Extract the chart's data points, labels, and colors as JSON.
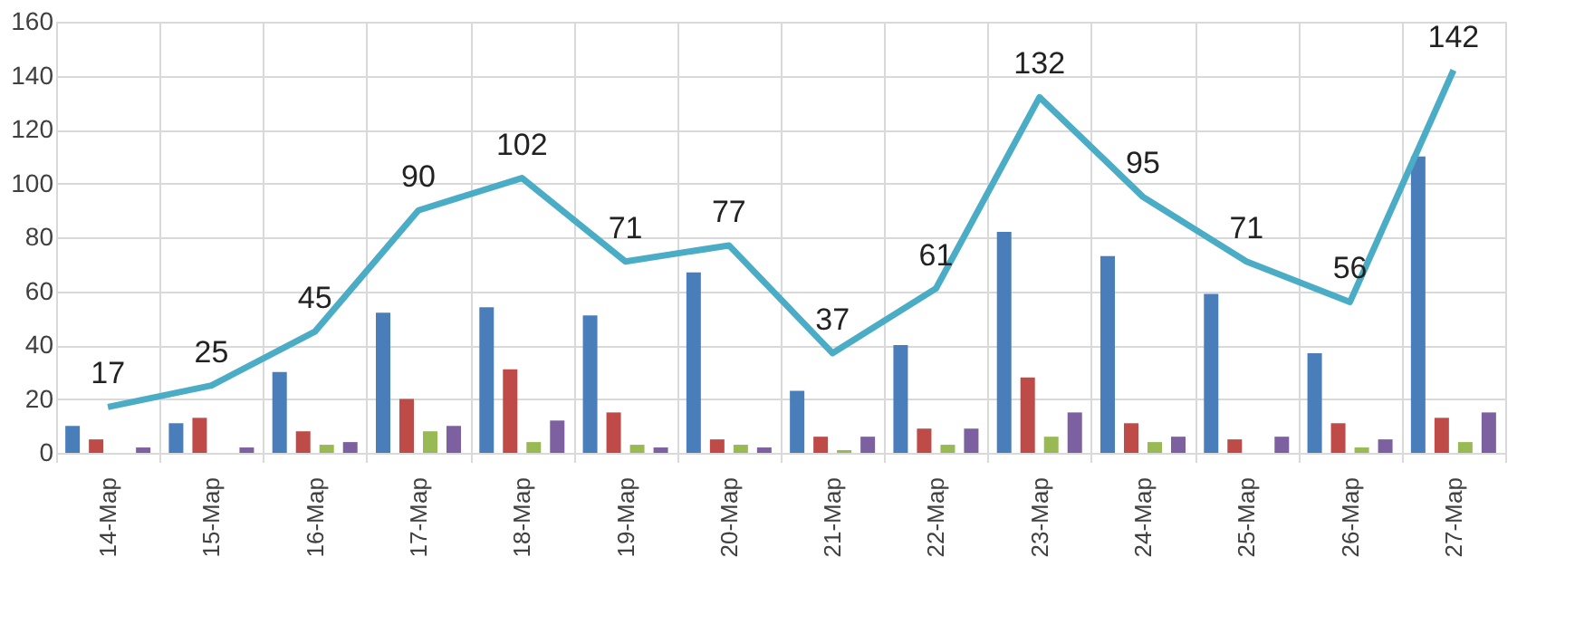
{
  "chart_data": {
    "type": "bar",
    "categories": [
      "14-Мар",
      "15-Мар",
      "16-Мар",
      "17-Мар",
      "18-Мар",
      "19-Мар",
      "20-Мар",
      "21-Мар",
      "22-Мар",
      "23-Мар",
      "24-Мар",
      "25-Мар",
      "26-Мар",
      "27-Мар"
    ],
    "series": [
      {
        "color": "#4a7ebb",
        "values": [
          10,
          11,
          30,
          52,
          54,
          51,
          67,
          23,
          40,
          82,
          73,
          59,
          37,
          110
        ]
      },
      {
        "color": "#be4b48",
        "values": [
          5,
          13,
          8,
          20,
          31,
          15,
          5,
          6,
          9,
          28,
          11,
          5,
          11,
          13
        ]
      },
      {
        "color": "#98b954",
        "values": [
          0,
          0,
          3,
          8,
          4,
          3,
          3,
          1,
          3,
          6,
          4,
          0,
          2,
          4
        ]
      },
      {
        "color": "#7d60a0",
        "values": [
          2,
          2,
          4,
          10,
          12,
          2,
          2,
          6,
          9,
          15,
          6,
          6,
          5,
          15
        ]
      },
      {
        "type": "line",
        "color": "#4bacc6",
        "values": [
          17,
          25,
          45,
          90,
          102,
          71,
          77,
          37,
          61,
          132,
          95,
          71,
          56,
          142
        ],
        "value_labels": [
          "17",
          "25",
          "45",
          "90",
          "102",
          "71",
          "77",
          "37",
          "61",
          "132",
          "95",
          "71",
          "56",
          "142"
        ]
      }
    ],
    "ylim": [
      0,
      160
    ],
    "yticks": [
      0,
      20,
      40,
      60,
      80,
      100,
      120,
      140,
      160
    ],
    "grid": "y",
    "marker": "none"
  }
}
